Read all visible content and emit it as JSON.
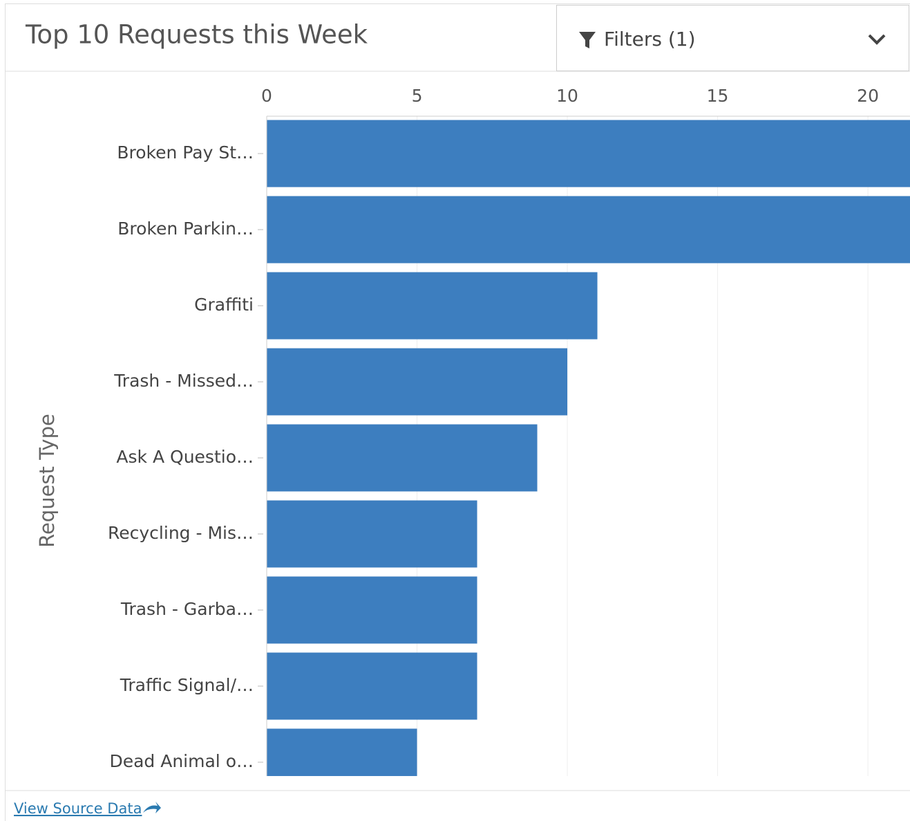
{
  "header": {
    "title": "Top 10 Requests this Week",
    "filter": "Filters (1)"
  },
  "footer": {
    "link": "View Source Data"
  },
  "chart_data": {
    "type": "bar",
    "orientation": "horizontal",
    "y_label": "Request Type",
    "categories": [
      "Broken Pay St…",
      "Broken Parkin…",
      "Graffiti",
      "Trash - Missed…",
      "Ask A Questio…",
      "Recycling - Mis…",
      "Trash - Garba…",
      "Traffic Signal/…",
      "Dead Animal o…"
    ],
    "values": [
      22,
      22,
      11,
      10,
      9,
      7,
      7,
      7,
      5
    ],
    "color": "#3d7ebf",
    "xlim": [
      0,
      21.4
    ],
    "xticks": [
      0,
      5,
      10,
      15,
      20
    ],
    "grid": true
  }
}
